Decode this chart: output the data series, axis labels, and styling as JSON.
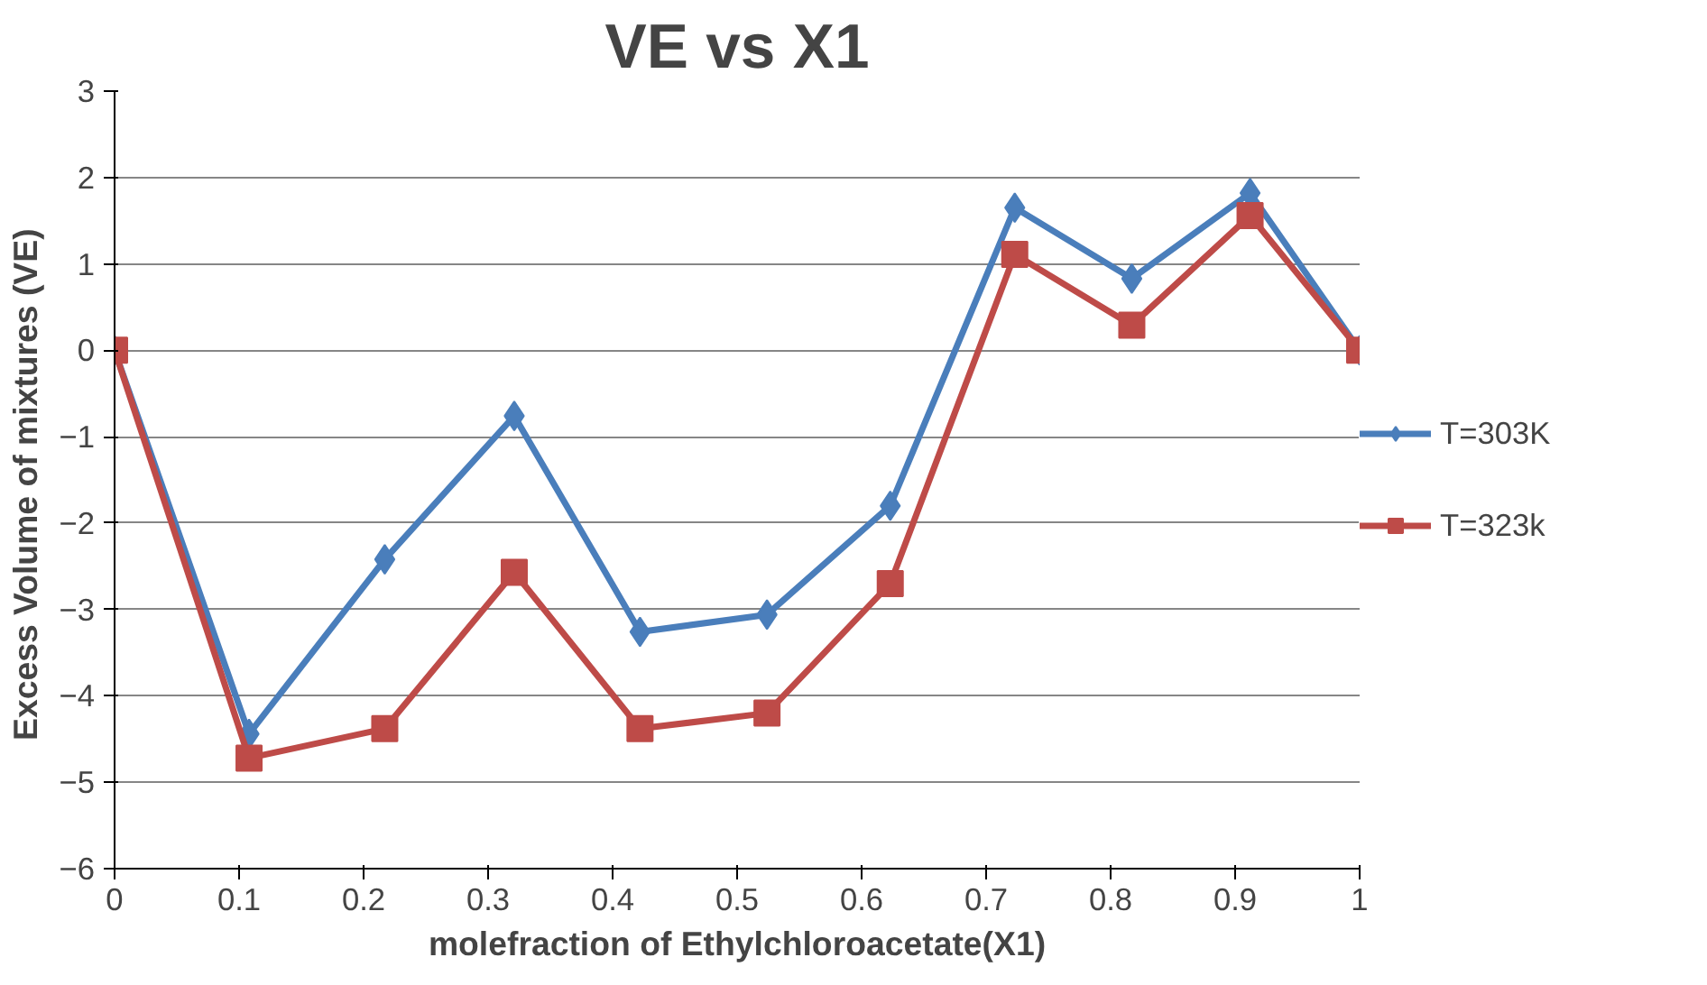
{
  "chart_data": {
    "type": "line",
    "title": "VE vs X1",
    "xlabel": "molefraction of Ethylchloroacetate(X1)",
    "ylabel": "Excess Volume of mixtures  (VE)",
    "x": [
      0,
      0.108,
      0.217,
      0.321,
      0.422,
      0.524,
      0.623,
      0.723,
      0.817,
      0.912,
      1
    ],
    "series": [
      {
        "name": "T=303K",
        "color": "#4a7ebb",
        "marker": "diamond",
        "values": [
          0,
          -4.44,
          -2.42,
          -0.76,
          -3.26,
          -3.06,
          -1.8,
          1.65,
          0.83,
          1.82,
          0
        ]
      },
      {
        "name": "T=323k",
        "color": "#be4b48",
        "marker": "square",
        "values": [
          0,
          -4.72,
          -4.38,
          -2.57,
          -4.38,
          -4.2,
          -2.7,
          1.11,
          0.29,
          1.56,
          0
        ]
      }
    ],
    "xlim": [
      0,
      1
    ],
    "xticks": [
      0,
      0.1,
      0.2,
      0.3,
      0.4,
      0.5,
      0.6,
      0.7,
      0.8,
      0.9,
      1
    ],
    "ylim": [
      -6,
      3
    ],
    "yticks": [
      -6,
      -5,
      -4,
      -3,
      -2,
      -1,
      0,
      1,
      2,
      3
    ],
    "grid": "y",
    "legend": "right",
    "line_style": "solid"
  }
}
